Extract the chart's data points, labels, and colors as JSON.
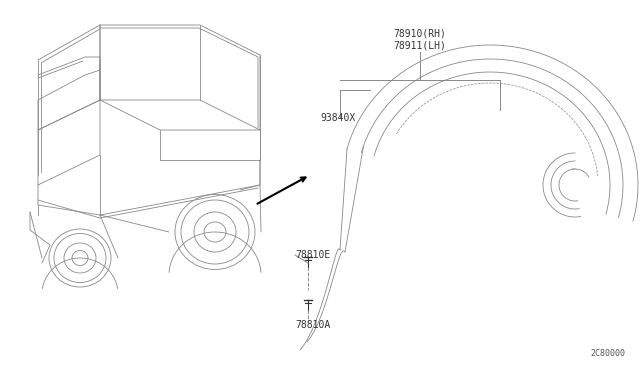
{
  "bg_color": "#ffffff",
  "line_color": "#888888",
  "dark_color": "#333333",
  "text_color": "#555555",
  "part_labels": {
    "78910RH_78911LH": "78910(RH)\n78911(LH)",
    "93840X": "93840X",
    "78810E": "78810E",
    "78810A": "78810A",
    "diagram_code": "2C80000"
  },
  "font_size_labels": 7,
  "font_size_code": 6,
  "figsize": [
    6.4,
    3.72
  ],
  "dpi": 100
}
